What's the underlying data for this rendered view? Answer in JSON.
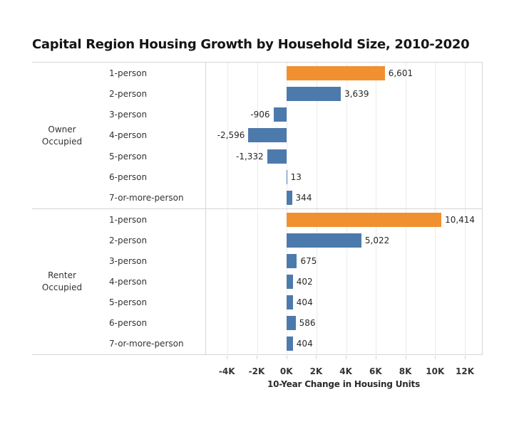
{
  "title": "Capital Region Housing Growth by Household Size, 2010-2020",
  "colors": {
    "orange": "#f0902f",
    "blue": "#4d7aac",
    "gridline": "#ececec",
    "border": "#d6d6d6",
    "text": "#333333"
  },
  "chart_data": {
    "type": "bar",
    "orientation": "horizontal",
    "title": "Capital Region Housing Growth by Household Size, 2010-2020",
    "xlabel": "10-Year Change in Housing Units",
    "ylabel": "",
    "xlim": [
      -5450,
      13150
    ],
    "grid": true,
    "legend": "none",
    "x_ticks": [
      {
        "value": -4000,
        "label": "-4K"
      },
      {
        "value": -2000,
        "label": "-2K"
      },
      {
        "value": 0,
        "label": "0K"
      },
      {
        "value": 2000,
        "label": "2K"
      },
      {
        "value": 4000,
        "label": "4K"
      },
      {
        "value": 6000,
        "label": "6K"
      },
      {
        "value": 8000,
        "label": "8K"
      },
      {
        "value": 10000,
        "label": "10K"
      },
      {
        "value": 12000,
        "label": "12K"
      }
    ],
    "groups": [
      {
        "label": "Owner Occupied",
        "rows": [
          {
            "category": "1-person",
            "value": 6601,
            "label": "6,601",
            "color": "orange"
          },
          {
            "category": "2-person",
            "value": 3639,
            "label": "3,639",
            "color": "blue"
          },
          {
            "category": "3-person",
            "value": -906,
            "label": "-906",
            "color": "blue"
          },
          {
            "category": "4-person",
            "value": -2596,
            "label": "-2,596",
            "color": "blue"
          },
          {
            "category": "5-person",
            "value": -1332,
            "label": "-1,332",
            "color": "blue"
          },
          {
            "category": "6-person",
            "value": 13,
            "label": "13",
            "color": "blue"
          },
          {
            "category": "7-or-more-person",
            "value": 344,
            "label": "344",
            "color": "blue"
          }
        ]
      },
      {
        "label": "Renter Occupied",
        "rows": [
          {
            "category": "1-person",
            "value": 10414,
            "label": "10,414",
            "color": "orange"
          },
          {
            "category": "2-person",
            "value": 5022,
            "label": "5,022",
            "color": "blue"
          },
          {
            "category": "3-person",
            "value": 675,
            "label": "675",
            "color": "blue"
          },
          {
            "category": "4-person",
            "value": 402,
            "label": "402",
            "color": "blue"
          },
          {
            "category": "5-person",
            "value": 404,
            "label": "404",
            "color": "blue"
          },
          {
            "category": "6-person",
            "value": 586,
            "label": "586",
            "color": "blue"
          },
          {
            "category": "7-or-more-person",
            "value": 404,
            "label": "404",
            "color": "blue"
          }
        ]
      }
    ]
  }
}
